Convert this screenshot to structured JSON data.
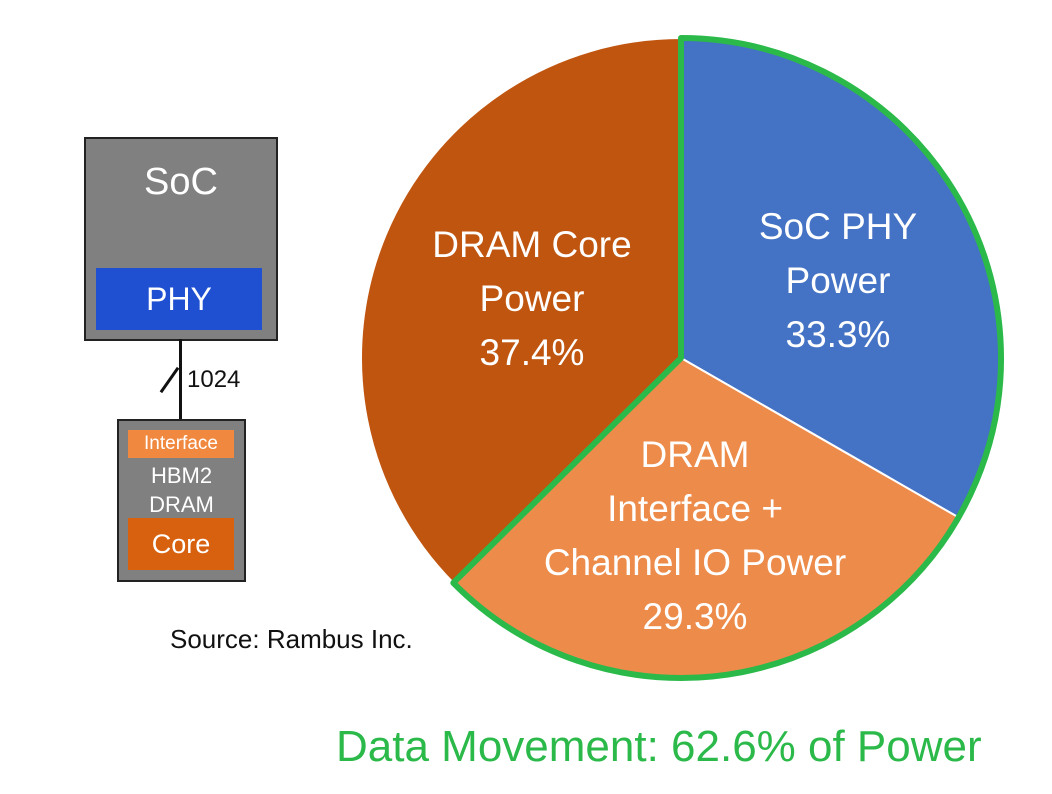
{
  "diagram": {
    "soc_label": "SoC",
    "phy_label": "PHY",
    "bus_width": "1024",
    "interface_label": "Interface",
    "hbm_label": "HBM2",
    "dram_label": "DRAM",
    "core_label": "Core"
  },
  "source": "Source: Rambus Inc.",
  "footer": "Data Movement: 62.6% of Power",
  "chart_data": {
    "type": "pie",
    "start_angle": "12 o'clock, clockwise",
    "slices": [
      {
        "label_lines": [
          "SoC PHY",
          "Power"
        ],
        "value": 33.3,
        "value_label": "33.3%",
        "color": "#4472c4",
        "data_movement": true
      },
      {
        "label_lines": [
          "DRAM",
          "Interface +",
          "Channel IO Power"
        ],
        "value": 29.3,
        "value_label": "29.3%",
        "color": "#ed8b4a",
        "data_movement": true
      },
      {
        "label_lines": [
          "DRAM Core",
          "Power"
        ],
        "value": 37.4,
        "value_label": "37.4%",
        "color": "#c0550f",
        "data_movement": false
      }
    ],
    "highlight_color": "#2bb94a"
  }
}
